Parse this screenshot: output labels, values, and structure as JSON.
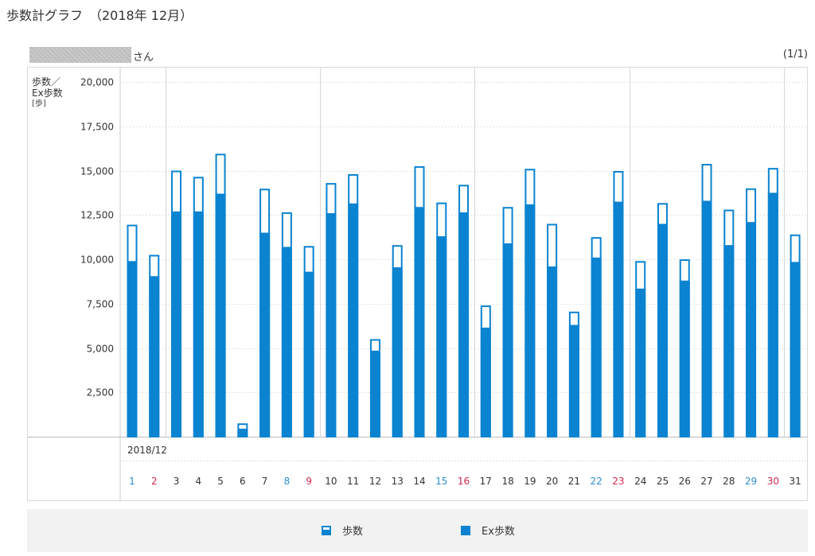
{
  "page": {
    "title": "歩数計グラフ　（2018年 12月）",
    "user_suffix": "さん",
    "page_indicator": "(1/1)"
  },
  "axis": {
    "ylabel_line1": "歩数／",
    "ylabel_line2": "Ex歩数",
    "ylabel_unit": "[歩]",
    "month_label": "2018/12"
  },
  "legend": {
    "steps": "歩数",
    "ex_steps": "Ex歩数"
  },
  "colors": {
    "bar": "#0a83d1",
    "weekday": "#333333",
    "saturday": "#2a8fd0",
    "sunday": "#d0284f",
    "grid": "#cccccc"
  },
  "chart_data": {
    "type": "bar",
    "ylim": [
      0,
      20000
    ],
    "yticks": [
      2500,
      5000,
      7500,
      10000,
      12500,
      15000,
      17500,
      20000
    ],
    "ytick_labels": [
      "2,500",
      "5,000",
      "7,500",
      "10,000",
      "12,500",
      "15,000",
      "17,500",
      "20,000"
    ],
    "categories": [
      "1",
      "2",
      "3",
      "4",
      "5",
      "6",
      "7",
      "8",
      "9",
      "10",
      "11",
      "12",
      "13",
      "14",
      "15",
      "16",
      "17",
      "18",
      "19",
      "20",
      "21",
      "22",
      "23",
      "24",
      "25",
      "26",
      "27",
      "28",
      "29",
      "30",
      "31"
    ],
    "day_types": [
      "sat",
      "sun",
      "wd",
      "wd",
      "wd",
      "wd",
      "wd",
      "sat",
      "sun",
      "wd",
      "wd",
      "wd",
      "wd",
      "wd",
      "sat",
      "sun",
      "wd",
      "wd",
      "wd",
      "wd",
      "wd",
      "sat",
      "sun",
      "wd",
      "wd",
      "wd",
      "wd",
      "wd",
      "sat",
      "sun",
      "wd"
    ],
    "week_separators_after": [
      "2",
      "9",
      "16",
      "23",
      "30"
    ],
    "series": [
      {
        "name": "歩数",
        "values": [
          11950,
          10250,
          15000,
          14650,
          15950,
          750,
          13980,
          12650,
          10750,
          14300,
          14800,
          5500,
          10800,
          15250,
          13200,
          14200,
          7400,
          12950,
          15100,
          12000,
          7050,
          11250,
          14980,
          9900,
          13170,
          10000,
          15380,
          12800,
          14000,
          15150,
          11400
        ]
      },
      {
        "name": "Ex歩数",
        "values": [
          9900,
          9050,
          12700,
          12700,
          13700,
          450,
          11500,
          10700,
          9300,
          12600,
          13150,
          4850,
          9550,
          12950,
          11300,
          12650,
          6150,
          10900,
          13100,
          9600,
          6300,
          10100,
          13250,
          8350,
          12000,
          8800,
          13300,
          10800,
          12100,
          13750,
          9850
        ]
      }
    ]
  }
}
